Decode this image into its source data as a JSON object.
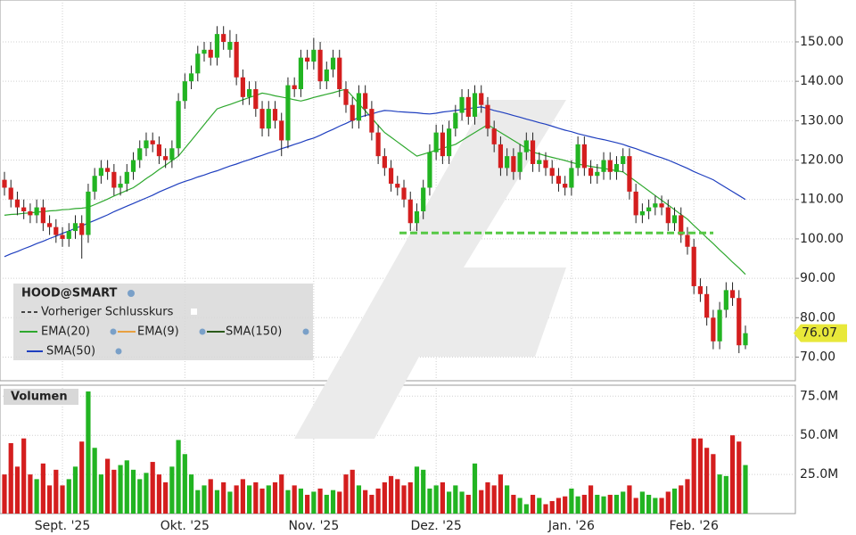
{
  "chart_data": {
    "type": "candlestick",
    "symbol": "HOOD@SMART",
    "categories": [
      null,
      null,
      null,
      null,
      null,
      null,
      null,
      null,
      null,
      "Sept. '25",
      null,
      null,
      null,
      null,
      null,
      null,
      null,
      null,
      null,
      null,
      null,
      null,
      null,
      null,
      null,
      null,
      null,
      null,
      "Okt. '25",
      null,
      null,
      null,
      null,
      null,
      null,
      null,
      null,
      null,
      null,
      null,
      null,
      null,
      null,
      null,
      null,
      null,
      null,
      null,
      "Nov. '25",
      null,
      null,
      null,
      null,
      null,
      null,
      null,
      null,
      null,
      null,
      null,
      null,
      null,
      null,
      null,
      null,
      null,
      null,
      "Dez. '25",
      null,
      null,
      null,
      null,
      null,
      null,
      null,
      null,
      null,
      null,
      null,
      null,
      null,
      null,
      null,
      null,
      null,
      null,
      null,
      null,
      "Jan. '26",
      null,
      null,
      null,
      null,
      null,
      null,
      null,
      null,
      null,
      null,
      null,
      null,
      null,
      null,
      null,
      null,
      null,
      null,
      "Feb. '26",
      null,
      null,
      null,
      null,
      null,
      null,
      null,
      null,
      null,
      null
    ],
    "candles": [
      [
        115,
        117,
        111,
        113
      ],
      [
        113,
        115,
        108,
        110
      ],
      [
        110,
        112,
        106,
        108
      ],
      [
        108,
        110,
        105,
        107
      ],
      [
        107,
        109,
        104,
        106
      ],
      [
        106,
        110,
        104,
        108
      ],
      [
        108,
        110,
        102,
        104
      ],
      [
        104,
        106,
        101,
        103
      ],
      [
        103,
        105,
        99,
        101
      ],
      [
        101,
        103,
        98,
        100
      ],
      [
        100,
        104,
        98,
        102
      ],
      [
        102,
        106,
        100,
        104
      ],
      [
        104,
        106,
        95,
        101
      ],
      [
        101,
        114,
        99,
        112
      ],
      [
        112,
        118,
        110,
        116
      ],
      [
        116,
        120,
        114,
        118
      ],
      [
        118,
        120,
        115,
        117
      ],
      [
        117,
        119,
        111,
        113
      ],
      [
        113,
        116,
        111,
        114
      ],
      [
        114,
        119,
        112,
        117
      ],
      [
        117,
        122,
        115,
        120
      ],
      [
        120,
        125,
        118,
        123
      ],
      [
        123,
        127,
        121,
        125
      ],
      [
        125,
        127,
        122,
        124
      ],
      [
        124,
        126,
        119,
        121
      ],
      [
        121,
        123,
        118,
        120
      ],
      [
        120,
        125,
        118,
        123
      ],
      [
        123,
        137,
        121,
        135
      ],
      [
        135,
        142,
        133,
        140
      ],
      [
        140,
        144,
        138,
        142
      ],
      [
        142,
        149,
        140,
        147
      ],
      [
        147,
        150,
        145,
        148
      ],
      [
        148,
        150,
        144,
        146
      ],
      [
        146,
        154,
        144,
        152
      ],
      [
        152,
        154,
        148,
        150
      ],
      [
        148,
        153,
        146,
        150
      ],
      [
        150,
        152,
        139,
        141
      ],
      [
        141,
        143,
        134,
        136
      ],
      [
        136,
        140,
        134,
        138
      ],
      [
        138,
        140,
        131,
        133
      ],
      [
        133,
        135,
        126,
        128
      ],
      [
        128,
        135,
        126,
        133
      ],
      [
        133,
        135,
        128,
        130
      ],
      [
        130,
        132,
        121,
        125
      ],
      [
        125,
        141,
        123,
        139
      ],
      [
        139,
        141,
        136,
        138
      ],
      [
        138,
        148,
        136,
        146
      ],
      [
        146,
        148,
        143,
        145
      ],
      [
        145,
        151,
        143,
        148
      ],
      [
        148,
        150,
        138,
        140
      ],
      [
        140,
        145,
        138,
        143
      ],
      [
        143,
        148,
        141,
        146
      ],
      [
        146,
        148,
        136,
        138
      ],
      [
        138,
        140,
        132,
        134
      ],
      [
        134,
        136,
        128,
        130
      ],
      [
        130,
        139,
        128,
        137
      ],
      [
        137,
        139,
        131,
        133
      ],
      [
        133,
        135,
        125,
        127
      ],
      [
        127,
        129,
        119,
        121
      ],
      [
        121,
        123,
        116,
        118
      ],
      [
        118,
        120,
        112,
        114
      ],
      [
        114,
        116,
        111,
        113
      ],
      [
        113,
        115,
        108,
        110
      ],
      [
        110,
        112,
        102,
        104
      ],
      [
        104,
        109,
        102,
        107
      ],
      [
        107,
        115,
        105,
        113
      ],
      [
        113,
        124,
        111,
        122
      ],
      [
        122,
        129,
        120,
        127
      ],
      [
        127,
        129,
        119,
        121
      ],
      [
        121,
        130,
        119,
        128
      ],
      [
        128,
        134,
        126,
        132
      ],
      [
        132,
        138,
        130,
        136
      ],
      [
        136,
        138,
        129,
        131
      ],
      [
        131,
        139,
        129,
        137
      ],
      [
        137,
        139,
        132,
        134
      ],
      [
        134,
        136,
        126,
        128
      ],
      [
        128,
        130,
        122,
        124
      ],
      [
        124,
        126,
        116,
        118
      ],
      [
        118,
        123,
        116,
        121
      ],
      [
        121,
        123,
        115,
        117
      ],
      [
        117,
        124,
        115,
        122
      ],
      [
        122,
        127,
        120,
        125
      ],
      [
        125,
        127,
        117,
        119
      ],
      [
        119,
        122,
        117,
        120
      ],
      [
        120,
        122,
        116,
        118
      ],
      [
        118,
        120,
        114,
        116
      ],
      [
        116,
        118,
        112,
        114
      ],
      [
        114,
        116,
        111,
        113
      ],
      [
        113,
        120,
        111,
        118
      ],
      [
        118,
        126,
        116,
        124
      ],
      [
        124,
        126,
        116,
        118
      ],
      [
        118,
        120,
        114,
        116
      ],
      [
        116,
        119,
        114,
        117
      ],
      [
        117,
        122,
        115,
        120
      ],
      [
        120,
        122,
        115,
        117
      ],
      [
        117,
        121,
        115,
        119
      ],
      [
        119,
        123,
        117,
        121
      ],
      [
        121,
        123,
        110,
        112
      ],
      [
        112,
        114,
        104,
        106
      ],
      [
        106,
        109,
        104,
        107
      ],
      [
        107,
        110,
        105,
        108
      ],
      [
        108,
        111,
        106,
        109
      ],
      [
        109,
        111,
        106,
        108
      ],
      [
        108,
        110,
        102,
        104
      ],
      [
        104,
        108,
        102,
        106
      ],
      [
        106,
        108,
        99,
        101
      ],
      [
        101,
        103,
        96,
        98
      ],
      [
        98,
        100,
        86,
        88
      ],
      [
        88,
        90,
        84,
        86
      ],
      [
        86,
        88,
        78,
        80
      ],
      [
        80,
        82,
        72,
        74
      ],
      [
        74,
        84,
        72,
        82
      ],
      [
        82,
        89,
        80,
        87
      ],
      [
        87,
        89,
        83,
        85
      ],
      [
        85,
        87,
        71,
        73
      ],
      [
        73,
        78,
        72,
        76.07
      ]
    ],
    "up_color": "#22b422",
    "down_color": "#d41e1e",
    "ylim": [
      64,
      159.5
    ],
    "yticks": [
      {
        "value": 70,
        "label": "70.00"
      },
      {
        "value": 80,
        "label": "80.00"
      },
      {
        "value": 90,
        "label": "90.00"
      },
      {
        "value": 100,
        "label": "100.00"
      },
      {
        "value": 110,
        "label": "110.00"
      },
      {
        "value": 120,
        "label": "120.00"
      },
      {
        "value": 130,
        "label": "130.00"
      },
      {
        "value": 140,
        "label": "140.00"
      },
      {
        "value": 150,
        "label": "150.00"
      }
    ],
    "last_price": 76.07,
    "last_price_color": "#e8e83a",
    "support_level": 101.5,
    "support_color": "#55c844",
    "lines": [
      {
        "name": "EMA(20)",
        "color": "#2ea82e",
        "values": [
          106,
          106.2,
          106.3,
          106.5,
          106.6,
          106.8,
          106.9,
          107.1,
          107.2,
          107.4,
          107.5,
          107.7,
          107.8,
          108,
          108.7,
          109.4,
          110.1,
          110.9,
          111.6,
          112.3,
          113,
          114.1,
          115.3,
          116.4,
          117.6,
          118.7,
          119.9,
          121,
          123,
          125,
          127,
          129,
          131,
          133,
          133.6,
          134.1,
          134.7,
          135.3,
          135.9,
          136.4,
          137,
          136.7,
          136.3,
          136,
          135.7,
          135.3,
          135,
          135.4,
          135.9,
          136.3,
          136.7,
          137.1,
          137.6,
          138,
          136.2,
          134.3,
          132.5,
          130.7,
          128.8,
          127,
          125.8,
          124.6,
          123.4,
          122.2,
          121,
          121.5,
          122,
          122.5,
          123,
          123.5,
          124,
          125,
          126,
          127,
          128,
          129,
          128,
          127,
          126,
          125,
          124,
          123,
          122,
          121.6,
          121.1,
          120.7,
          120.3,
          119.9,
          119.4,
          119,
          118.7,
          118.4,
          118.1,
          117.9,
          117.6,
          117.3,
          117,
          115.8,
          114.6,
          113.4,
          112.2,
          111,
          109.8,
          108.6,
          107.4,
          106.2,
          105,
          103.4,
          101.9,
          100.3,
          98.8,
          97.2,
          95.7,
          94.1,
          92.6,
          91
        ]
      },
      {
        "name": "SMA(50)",
        "color": "#1f3fbf",
        "values": [
          95.5,
          96.2,
          96.8,
          97.5,
          98.1,
          98.8,
          99.4,
          100.1,
          100.7,
          101.4,
          102,
          102.7,
          103.3,
          104,
          104.7,
          105.4,
          106.1,
          106.9,
          107.6,
          108.3,
          109,
          109.7,
          110.4,
          111.1,
          111.9,
          112.6,
          113.3,
          114,
          114.6,
          115.1,
          115.7,
          116.2,
          116.8,
          117.3,
          117.9,
          118.5,
          119,
          119.6,
          120.1,
          120.7,
          121.2,
          121.8,
          122.3,
          122.9,
          123.4,
          124,
          124.5,
          125.1,
          125.6,
          126.3,
          127.1,
          127.8,
          128.6,
          129.3,
          130.1,
          130.8,
          131.3,
          131.7,
          132.2,
          132.6,
          132.5,
          132.3,
          132.2,
          132.1,
          132,
          131.8,
          131.7,
          131.9,
          132.2,
          132.4,
          132.6,
          132.8,
          133.1,
          133.3,
          133.5,
          133.1,
          132.6,
          132.2,
          131.8,
          131.3,
          130.9,
          130.4,
          130,
          129.5,
          129.1,
          128.6,
          128.1,
          127.6,
          127.2,
          126.7,
          126.3,
          125.9,
          125.5,
          125.2,
          124.8,
          124.4,
          124,
          123.4,
          122.9,
          122.3,
          121.7,
          121.1,
          120.6,
          120,
          119.3,
          118.6,
          117.9,
          117.1,
          116.4,
          115.7,
          115,
          114,
          113,
          112,
          111,
          110
        ]
      }
    ],
    "other_indicators": [
      {
        "name": "Vorheriger Schlusskurs",
        "color": "#444444"
      },
      {
        "name": "EMA(9)",
        "color": "#e8a040"
      },
      {
        "name": "SMA(150)",
        "color": "#2a5a1a"
      }
    ],
    "volume": {
      "title": "Volumen",
      "ylim": [
        0,
        82
      ],
      "yticks": [
        {
          "value": 25,
          "label": "25.0M"
        },
        {
          "value": 50,
          "label": "50.0M"
        },
        {
          "value": 75,
          "label": "75.0M"
        }
      ],
      "values": [
        25,
        45,
        30,
        48,
        25,
        22,
        32,
        18,
        28,
        18,
        22,
        30,
        46,
        78,
        42,
        25,
        35,
        28,
        31,
        34,
        28,
        22,
        26,
        33,
        25,
        20,
        30,
        47,
        38,
        25,
        15,
        18,
        22,
        15,
        20,
        14,
        18,
        22,
        18,
        20,
        16,
        18,
        20,
        25,
        15,
        18,
        16,
        12,
        14,
        16,
        12,
        15,
        14,
        25,
        28,
        18,
        15,
        12,
        16,
        20,
        24,
        22,
        18,
        20,
        30,
        28,
        16,
        18,
        20,
        14,
        18,
        14,
        12,
        32,
        15,
        20,
        18,
        25,
        18,
        12,
        10,
        6,
        12,
        10,
        6,
        8,
        10,
        11,
        16,
        11,
        12,
        18,
        12,
        11,
        12,
        12,
        14,
        18,
        10,
        14,
        12,
        10,
        10,
        14,
        16,
        18,
        22,
        48,
        48,
        42,
        38,
        25,
        24,
        50,
        46,
        31
      ]
    }
  }
}
